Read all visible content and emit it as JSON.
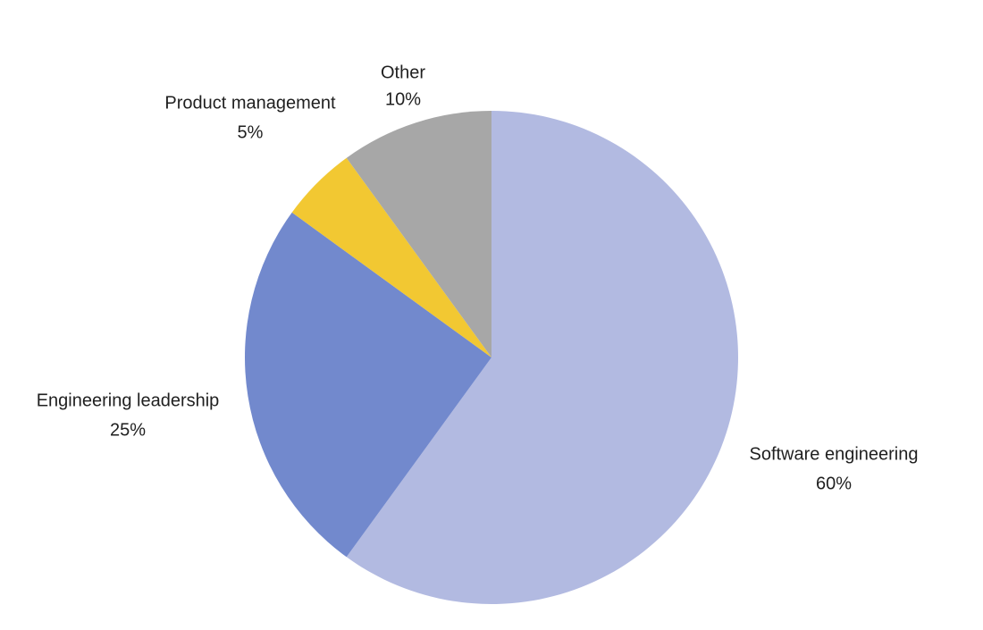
{
  "chart_data": {
    "type": "pie",
    "legend": "none",
    "slices": [
      {
        "name": "Software engineering",
        "value": 60,
        "label": "60%",
        "color": "#b2bae1"
      },
      {
        "name": "Engineering leadership",
        "value": 25,
        "label": "25%",
        "color": "#7289cd"
      },
      {
        "name": "Product management",
        "value": 5,
        "label": "5%",
        "color": "#f2c832"
      },
      {
        "name": "Other",
        "value": 10,
        "label": "10%",
        "color": "#a7a7a7"
      }
    ]
  }
}
